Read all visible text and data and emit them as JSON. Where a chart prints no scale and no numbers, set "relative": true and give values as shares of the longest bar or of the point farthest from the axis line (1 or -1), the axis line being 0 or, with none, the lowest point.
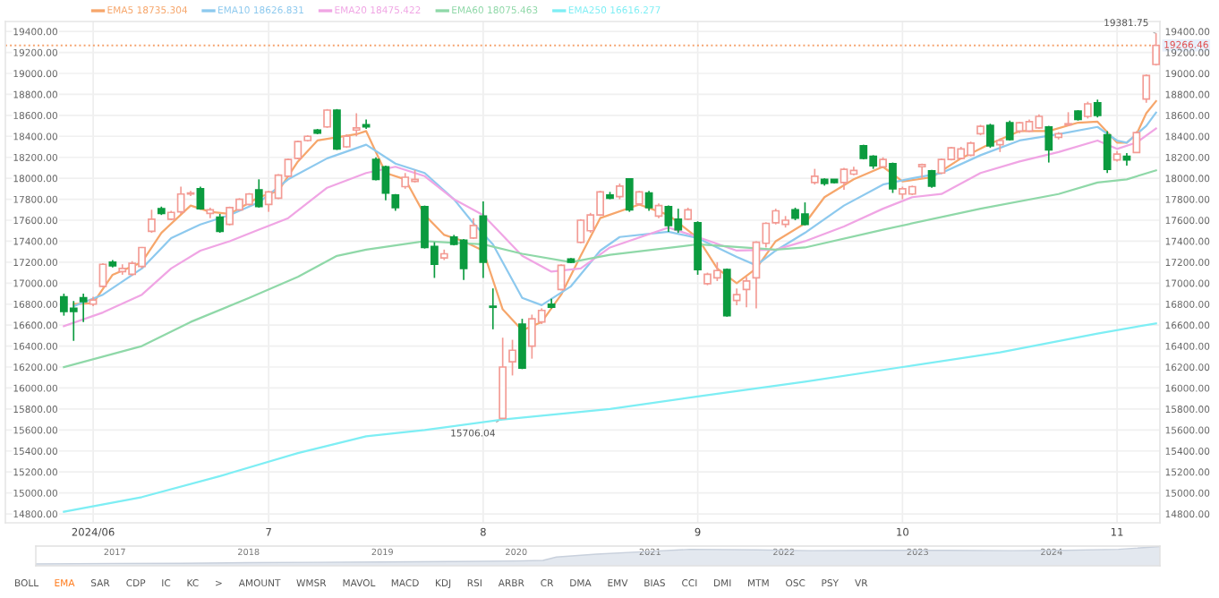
{
  "chart_data": [
    {
      "type": "candlestick",
      "legend": "top",
      "grid": true,
      "colors": [
        "#0b9b3f",
        "#0b9b3f",
        "#0b9b3f",
        "#f39b94",
        "#f39b94",
        "#0b9b3f",
        "#f39b94",
        "#f39b94",
        "#f39b94",
        "#f39b94",
        "#0b9b3f",
        "#f39b94",
        "#f39b94",
        "#f39b94",
        "#0b9b3f",
        "#f39b94",
        "#0b9b3f",
        "#f39b94",
        "#f39b94",
        "#f39b94",
        "#0b9b3f",
        "#f39b94",
        "#f39b94",
        "#f39b94",
        "#f39b94",
        "#f39b94",
        "#0b9b3f",
        "#f39b94",
        "#0b9b3f",
        "#f39b94",
        "#f39b94",
        "#0b9b3f",
        "#0b9b3f",
        "#0b9b3f",
        "#0b9b3f",
        "#f39b94",
        "#f39b94",
        "#0b9b3f",
        "#0b9b3f",
        "#f39b94",
        "#0b9b3f",
        "#0b9b3f",
        "#f39b94",
        "#0b9b3f",
        "#0b9b3f",
        "#f39b94",
        "#f39b94",
        "#0b9b3f",
        "#f39b94",
        "#f39b94",
        "#0b9b3f",
        "#f39b94",
        "#0b9b3f",
        "#f39b94",
        "#f39b94",
        "#f39b94",
        "#0b9b3f",
        "#f39b94",
        "#0b9b3f",
        "#f39b94",
        "#0b9b3f",
        "#f39b94",
        "#0b9b3f",
        "#0b9b3f",
        "#f39b94",
        "#0b9b3f",
        "#f39b94",
        "#f39b94",
        "#0b9b3f",
        "#f39b94",
        "#f39b94",
        "#f39b94",
        "#f39b94",
        "#f39b94",
        "#f39b94",
        "#0b9b3f",
        "#0b9b3f",
        "#f39b94",
        "#0b9b3f",
        "#0b9b3f",
        "#f39b94",
        "#f39b94",
        "#0b9b3f",
        "#0b9b3f",
        "#f39b94",
        "#0b9b3f",
        "#f39b94",
        "#f39b94",
        "#f39b94",
        "#0b9b3f",
        "#f39b94",
        "#f39b94",
        "#f39b94",
        "#f39b94",
        "#f39b94",
        "#0b9b3f",
        "#f39b94",
        "#0b9b3f",
        "#f39b94",
        "#f39b94",
        "#f39b94",
        "#0b9b3f",
        "#f39b94",
        "#f39b94",
        "#0b9b3f",
        "#f39b94",
        "#0b9b3f",
        "#0b9b3f",
        "#f39b94",
        "#0b9b3f",
        "#f39b94",
        "#f39b94",
        "#f39b94"
      ],
      "categories": [
        null,
        null,
        null,
        "2024/06",
        null,
        null,
        null,
        null,
        null,
        null,
        null,
        null,
        null,
        null,
        null,
        null,
        null,
        null,
        null,
        null,
        null,
        "7",
        null,
        null,
        null,
        null,
        null,
        null,
        null,
        null,
        null,
        null,
        null,
        null,
        null,
        null,
        null,
        null,
        null,
        null,
        null,
        null,
        null,
        "8",
        null,
        null,
        null,
        null,
        null,
        null,
        null,
        null,
        null,
        null,
        null,
        null,
        null,
        null,
        null,
        null,
        null,
        null,
        null,
        null,
        null,
        "9",
        null,
        null,
        null,
        null,
        null,
        null,
        null,
        null,
        null,
        null,
        null,
        null,
        null,
        null,
        null,
        null,
        null,
        null,
        null,
        null,
        "10",
        null,
        null,
        null,
        null,
        null,
        null,
        null,
        null,
        null,
        null,
        null,
        null,
        null,
        null,
        null,
        null,
        null,
        null,
        null,
        null,
        null,
        "11",
        null,
        null,
        null,
        null
      ],
      "ohlc": [
        [
          16870,
          16900,
          16690,
          16730
        ],
        [
          16760,
          16830,
          16450,
          16730
        ],
        [
          16860,
          16900,
          16630,
          16825
        ],
        [
          16800,
          16870,
          16780,
          16840
        ],
        [
          16970,
          17190,
          16960,
          17180
        ],
        [
          17200,
          17220,
          17150,
          17165
        ],
        [
          17110,
          17180,
          17080,
          17140
        ],
        [
          17085,
          17210,
          17070,
          17190
        ],
        [
          17160,
          17345,
          17140,
          17340
        ],
        [
          17495,
          17700,
          17480,
          17610
        ],
        [
          17710,
          17730,
          17650,
          17665
        ],
        [
          17610,
          17690,
          17600,
          17675
        ],
        [
          17680,
          17920,
          17660,
          17850
        ],
        [
          17850,
          17880,
          17830,
          17860
        ],
        [
          17900,
          17920,
          17700,
          17710
        ],
        [
          17665,
          17720,
          17620,
          17700
        ],
        [
          17630,
          17660,
          17480,
          17495
        ],
        [
          17560,
          17730,
          17550,
          17720
        ],
        [
          17700,
          17810,
          17690,
          17800
        ],
        [
          17750,
          17860,
          17740,
          17850
        ],
        [
          17890,
          17990,
          17720,
          17730
        ],
        [
          17750,
          17880,
          17680,
          17870
        ],
        [
          17810,
          18040,
          17800,
          18030
        ],
        [
          18020,
          18190,
          18010,
          18180
        ],
        [
          18190,
          18360,
          18180,
          18350
        ],
        [
          18360,
          18410,
          18350,
          18400
        ],
        [
          18460,
          18470,
          18420,
          18430
        ],
        [
          18490,
          18660,
          18480,
          18650
        ],
        [
          18650,
          18660,
          18270,
          18280
        ],
        [
          18300,
          18420,
          18290,
          18400
        ],
        [
          18460,
          18620,
          18400,
          18480
        ],
        [
          18510,
          18560,
          18470,
          18490
        ],
        [
          18180,
          18200,
          17980,
          17990
        ],
        [
          18110,
          18120,
          17790,
          17860
        ],
        [
          17840,
          17850,
          17690,
          17720
        ],
        [
          17920,
          18050,
          17900,
          18010
        ],
        [
          17970,
          18080,
          17960,
          17990
        ],
        [
          17730,
          17740,
          17330,
          17340
        ],
        [
          17350,
          17390,
          17050,
          17180
        ],
        [
          17240,
          17320,
          17220,
          17280
        ],
        [
          17440,
          17460,
          17360,
          17370
        ],
        [
          17410,
          17420,
          17030,
          17140
        ],
        [
          17430,
          17620,
          17420,
          17550
        ],
        [
          17640,
          17780,
          17050,
          17200
        ],
        [
          16780,
          16950,
          16560,
          16770
        ],
        [
          15710,
          16480,
          15706.04,
          16200
        ],
        [
          16250,
          16460,
          16120,
          16360
        ],
        [
          16610,
          16660,
          16180,
          16190
        ],
        [
          16400,
          16700,
          16280,
          16660
        ],
        [
          16630,
          16760,
          16610,
          16740
        ],
        [
          16800,
          16850,
          16760,
          16770
        ],
        [
          16940,
          17180,
          16930,
          17170
        ],
        [
          17230,
          17240,
          17190,
          17200
        ],
        [
          17390,
          17610,
          17380,
          17600
        ],
        [
          17500,
          17670,
          17480,
          17650
        ],
        [
          17650,
          17880,
          17640,
          17870
        ],
        [
          17840,
          17870,
          17800,
          17810
        ],
        [
          17825,
          17950,
          17800,
          17925
        ],
        [
          17995,
          18000,
          17680,
          17700
        ],
        [
          17755,
          17880,
          17740,
          17870
        ],
        [
          17860,
          17880,
          17690,
          17720
        ],
        [
          17640,
          17760,
          17620,
          17740
        ],
        [
          17730,
          17740,
          17490,
          17550
        ],
        [
          17610,
          17710,
          17480,
          17510
        ],
        [
          17610,
          17720,
          17600,
          17700
        ],
        [
          17575,
          17590,
          17080,
          17130
        ],
        [
          16995,
          17100,
          16980,
          17085
        ],
        [
          17050,
          17200,
          17020,
          17120
        ],
        [
          17130,
          17140,
          16680,
          16690
        ],
        [
          16835,
          16950,
          16790,
          16890
        ],
        [
          16940,
          17060,
          16770,
          17020
        ],
        [
          17050,
          17400,
          16760,
          17390
        ],
        [
          17380,
          17580,
          17340,
          17570
        ],
        [
          17575,
          17710,
          17560,
          17690
        ],
        [
          17560,
          17640,
          17530,
          17600
        ],
        [
          17700,
          17720,
          17600,
          17620
        ],
        [
          17660,
          17770,
          17550,
          17560
        ],
        [
          17960,
          18090,
          17940,
          18020
        ],
        [
          17990,
          18000,
          17930,
          17950
        ],
        [
          17990,
          17990,
          17950,
          17960
        ],
        [
          17960,
          18100,
          17890,
          18085
        ],
        [
          18040,
          18110,
          18030,
          18075
        ],
        [
          18310,
          18320,
          18180,
          18190
        ],
        [
          18210,
          18220,
          18090,
          18120
        ],
        [
          18110,
          18200,
          18100,
          18180
        ],
        [
          18140,
          18150,
          17860,
          17900
        ],
        [
          17850,
          17920,
          17800,
          17900
        ],
        [
          17850,
          17930,
          17840,
          17920
        ],
        [
          18110,
          18140,
          18000,
          18130
        ],
        [
          18070,
          18080,
          17910,
          17925
        ],
        [
          18050,
          18190,
          18040,
          18180
        ],
        [
          18180,
          18300,
          18170,
          18290
        ],
        [
          18190,
          18300,
          18180,
          18280
        ],
        [
          18220,
          18350,
          18210,
          18335
        ],
        [
          18425,
          18510,
          18410,
          18495
        ],
        [
          18505,
          18520,
          18290,
          18310
        ],
        [
          18320,
          18380,
          18250,
          18360
        ],
        [
          18530,
          18550,
          18360,
          18370
        ],
        [
          18450,
          18540,
          18430,
          18530
        ],
        [
          18450,
          18560,
          18440,
          18540
        ],
        [
          18480,
          18610,
          18470,
          18590
        ],
        [
          18490,
          18500,
          18150,
          18270
        ],
        [
          18390,
          18440,
          18370,
          18425
        ],
        [
          18510,
          18630,
          18500,
          18520
        ],
        [
          18640,
          18650,
          18550,
          18560
        ],
        [
          18590,
          18730,
          18570,
          18710
        ],
        [
          18720,
          18750,
          18580,
          18600
        ],
        [
          18415,
          18450,
          18050,
          18085
        ],
        [
          18175,
          18260,
          18160,
          18230
        ],
        [
          18210,
          18240,
          18120,
          18175
        ],
        [
          18245,
          18450,
          18240,
          18435
        ],
        [
          18755,
          18990,
          18720,
          18980
        ],
        [
          19085,
          19381.75,
          19075,
          19266.46
        ]
      ],
      "series": [
        {
          "name": "EMA5 18735.304",
          "type": "line",
          "color": "#f6a66b",
          "values": [
            null,
            16800,
            null,
            16810,
            null,
            17080,
            null,
            null,
            17200,
            null,
            17480,
            null,
            null,
            17740,
            null,
            17680,
            null,
            17660,
            null,
            null,
            17820,
            null,
            17880,
            null,
            18160,
            null,
            18360,
            null,
            18390,
            null,
            18420,
            18450,
            null,
            18050,
            null,
            17990,
            null,
            17650,
            null,
            17460,
            null,
            17400,
            null,
            17310,
            null,
            16750,
            null,
            16550,
            null,
            16630,
            null,
            16890,
            null,
            17260,
            null,
            17620,
            null,
            null,
            null,
            17750,
            null,
            null,
            17650,
            null,
            null,
            17430,
            null,
            17140,
            null,
            17000,
            null,
            17140,
            null,
            17400,
            null,
            null,
            17570,
            null,
            17820,
            null,
            null,
            17990,
            null,
            null,
            18110,
            null,
            17970,
            null,
            null,
            18010,
            null,
            null,
            18190,
            null,
            null,
            18330,
            null,
            null,
            18450,
            null,
            null,
            18450,
            null,
            null,
            18530,
            null,
            18540,
            null,
            18340,
            18340,
            18420,
            18620,
            18735.304
          ]
        },
        {
          "name": "EMA10 18626.831",
          "type": "line",
          "color": "#8dc9ee",
          "values": [
            null,
            16780,
            null,
            null,
            16890,
            null,
            null,
            null,
            17140,
            null,
            null,
            17430,
            null,
            null,
            17560,
            null,
            null,
            17650,
            null,
            null,
            17770,
            null,
            null,
            17990,
            null,
            null,
            null,
            18190,
            null,
            null,
            null,
            18320,
            null,
            null,
            18140,
            null,
            null,
            18050,
            null,
            null,
            17800,
            null,
            17570,
            null,
            17370,
            null,
            null,
            16860,
            null,
            16790,
            null,
            null,
            16970,
            null,
            null,
            17310,
            null,
            17440,
            null,
            null,
            null,
            null,
            17490,
            null,
            null,
            17430,
            null,
            null,
            null,
            17250,
            null,
            17170,
            null,
            17310,
            null,
            null,
            17480,
            null,
            null,
            null,
            17740,
            null,
            null,
            null,
            17940,
            null,
            null,
            18000,
            null,
            null,
            18050,
            null,
            null,
            null,
            18220,
            null,
            null,
            null,
            18360,
            null,
            null,
            null,
            18420,
            null,
            null,
            null,
            18490,
            null,
            18360,
            18340,
            18420,
            18500,
            18626.831
          ]
        },
        {
          "name": "EMA20 18475.422",
          "type": "line",
          "color": "#f0a5e4",
          "values": [
            16590,
            null,
            null,
            null,
            16720,
            null,
            null,
            null,
            16890,
            null,
            null,
            17140,
            null,
            null,
            17310,
            null,
            null,
            17400,
            null,
            null,
            17510,
            null,
            null,
            17620,
            null,
            null,
            null,
            17910,
            null,
            null,
            null,
            18050,
            null,
            null,
            18110,
            null,
            null,
            18020,
            null,
            null,
            17800,
            null,
            null,
            17650,
            null,
            null,
            null,
            17260,
            null,
            null,
            17110,
            null,
            null,
            17140,
            null,
            null,
            17340,
            null,
            null,
            null,
            null,
            null,
            17530,
            null,
            null,
            17440,
            null,
            null,
            null,
            17310,
            null,
            null,
            null,
            17320,
            null,
            null,
            17400,
            null,
            null,
            null,
            17540,
            null,
            null,
            null,
            17710,
            null,
            null,
            17820,
            null,
            null,
            17850,
            null,
            null,
            null,
            18050,
            null,
            null,
            null,
            18160,
            null,
            null,
            null,
            18250,
            null,
            null,
            null,
            18360,
            null,
            18280,
            null,
            18340,
            null,
            18475.422
          ]
        },
        {
          "name": "EMA60 18075.463",
          "type": "line",
          "color": "#8fd8a8",
          "values": [
            16200,
            null,
            null,
            null,
            null,
            null,
            null,
            null,
            16400,
            null,
            null,
            null,
            null,
            16630,
            null,
            null,
            null,
            null,
            null,
            16860,
            null,
            null,
            null,
            null,
            17060,
            null,
            null,
            null,
            17260,
            null,
            null,
            17320,
            null,
            null,
            null,
            null,
            null,
            17400,
            null,
            null,
            null,
            null,
            null,
            17370,
            null,
            null,
            null,
            17280,
            null,
            null,
            null,
            null,
            17200,
            null,
            null,
            null,
            17270,
            null,
            null,
            null,
            null,
            null,
            null,
            null,
            null,
            17370,
            null,
            null,
            null,
            null,
            null,
            null,
            null,
            17320,
            null,
            null,
            17340,
            null,
            null,
            null,
            null,
            null,
            null,
            null,
            17510,
            null,
            null,
            null,
            null,
            null,
            null,
            null,
            null,
            null,
            17710,
            null,
            null,
            null,
            null,
            null,
            null,
            null,
            17850,
            null,
            null,
            null,
            17960,
            null,
            null,
            17990,
            null,
            null,
            18075.463
          ]
        },
        {
          "name": "EMA250 16616.277",
          "type": "line",
          "color": "#7eeef4",
          "values": [
            14820,
            null,
            null,
            null,
            null,
            null,
            null,
            null,
            14960,
            null,
            null,
            null,
            null,
            null,
            null,
            null,
            15160,
            null,
            null,
            null,
            null,
            null,
            null,
            null,
            15380,
            null,
            null,
            null,
            null,
            null,
            null,
            15540,
            null,
            null,
            null,
            null,
            null,
            15600,
            null,
            null,
            null,
            null,
            null,
            null,
            null,
            15700,
            null,
            null,
            null,
            null,
            null,
            null,
            null,
            null,
            null,
            null,
            15800,
            null,
            null,
            null,
            null,
            null,
            null,
            null,
            null,
            15920,
            null,
            null,
            null,
            null,
            null,
            null,
            null,
            null,
            null,
            null,
            16060,
            null,
            null,
            null,
            null,
            null,
            null,
            null,
            null,
            null,
            16200,
            null,
            null,
            null,
            null,
            null,
            null,
            null,
            null,
            null,
            16340,
            null,
            null,
            null,
            null,
            null,
            null,
            null,
            null,
            null,
            16520,
            null,
            null,
            null,
            null,
            null,
            16616.277
          ]
        }
      ],
      "ylim": [
        14715,
        19495
      ],
      "yticks": [
        {
          "value": 14800,
          "label": "14800.00"
        },
        {
          "value": 15000,
          "label": "15000.00"
        },
        {
          "value": 15200,
          "label": "15200.00"
        },
        {
          "value": 15400,
          "label": "15400.00"
        },
        {
          "value": 15600,
          "label": "15600.00"
        },
        {
          "value": 15800,
          "label": "15800.00"
        },
        {
          "value": 16000,
          "label": "16000.00"
        },
        {
          "value": 16200,
          "label": "16200.00"
        },
        {
          "value": 16400,
          "label": "16400.00"
        },
        {
          "value": 16600,
          "label": "16600.00"
        },
        {
          "value": 16800,
          "label": "16800.00"
        },
        {
          "value": 17000,
          "label": "17000.00"
        },
        {
          "value": 17200,
          "label": "17200.00"
        },
        {
          "value": 17400,
          "label": "17400.00"
        },
        {
          "value": 17600,
          "label": "17600.00"
        },
        {
          "value": 17800,
          "label": "17800.00"
        },
        {
          "value": 18000,
          "label": "18000.00"
        },
        {
          "value": 18200,
          "label": "18200.00"
        },
        {
          "value": 18400,
          "label": "18400.00"
        },
        {
          "value": 18600,
          "label": "18600.00"
        },
        {
          "value": 18800,
          "label": "18800.00"
        },
        {
          "value": 19000,
          "label": "19000.00"
        },
        {
          "value": 19200,
          "label": "19200.00"
        },
        {
          "value": 19400,
          "label": "19400.00"
        }
      ],
      "y2lim": [
        14715,
        19495
      ],
      "y2ticks": [
        {
          "value": 14800,
          "label": "14800.00"
        },
        {
          "value": 15000,
          "label": "15000.00"
        },
        {
          "value": 15200,
          "label": "15200.00"
        },
        {
          "value": 15400,
          "label": "15400.00"
        },
        {
          "value": 15600,
          "label": "15600.00"
        },
        {
          "value": 15800,
          "label": "15800.00"
        },
        {
          "value": 16000,
          "label": "16000.00"
        },
        {
          "value": 16200,
          "label": "16200.00"
        },
        {
          "value": 16400,
          "label": "16400.00"
        },
        {
          "value": 16600,
          "label": "16600.00"
        },
        {
          "value": 16800,
          "label": "16800.00"
        },
        {
          "value": 17000,
          "label": "17000.00"
        },
        {
          "value": 17200,
          "label": "17200.00"
        },
        {
          "value": 17400,
          "label": "17400.00"
        },
        {
          "value": 17600,
          "label": "17600.00"
        },
        {
          "value": 17800,
          "label": "17800.00"
        },
        {
          "value": 18000,
          "label": "18000.00"
        },
        {
          "value": 18200,
          "label": "18200.00"
        },
        {
          "value": 18400,
          "label": "18400.00"
        },
        {
          "value": 18600,
          "label": "18600.00"
        },
        {
          "value": 18800,
          "label": "18800.00"
        },
        {
          "value": 19000,
          "label": "19000.00"
        },
        {
          "value": 19200,
          "label": "19200.00"
        },
        {
          "value": 19400,
          "label": "19400.00"
        }
      ],
      "ref_lines": [
        {
          "axis": "y",
          "value": 19266.46,
          "label": "19266.46",
          "color": "#f5a36e",
          "line_style": "dotted"
        }
      ],
      "annotations": [
        "19381.75",
        "15706.04"
      ]
    },
    {
      "type": "area",
      "relative": true,
      "color": "#e3e8ef",
      "x": [
        2016.41,
        2017.0,
        2017.5,
        2018.0,
        2018.5,
        2019.0,
        2019.5,
        2020.0,
        2020.2,
        2020.3,
        2020.6,
        2021.0,
        2021.3,
        2021.8,
        2022.2,
        2022.8,
        2023.2,
        2023.7,
        2024.1,
        2024.5,
        2024.81
      ],
      "values": [
        0.1,
        0.12,
        0.13,
        0.16,
        0.18,
        0.2,
        0.22,
        0.25,
        0.28,
        0.45,
        0.6,
        0.75,
        0.85,
        0.82,
        0.78,
        0.8,
        0.8,
        0.78,
        0.8,
        0.85,
        1
      ],
      "xlim": [
        2016.41,
        2024.81
      ],
      "xticks": [
        2017,
        2018,
        2019,
        2020,
        2021,
        2022,
        2023,
        2024
      ],
      "annotations": [
        "BOLL",
        "EMA",
        "SAR",
        "CDP",
        "IC",
        "KC",
        ">",
        "AMOUNT",
        "WMSR",
        "MAVOL",
        "MACD",
        "KDJ",
        "RSI",
        "ARBR",
        "CR",
        "DMA",
        "EMV",
        "BIAS",
        "CCI",
        "DMI",
        "MTM",
        "OSC",
        "PSY",
        "VR"
      ]
    }
  ]
}
